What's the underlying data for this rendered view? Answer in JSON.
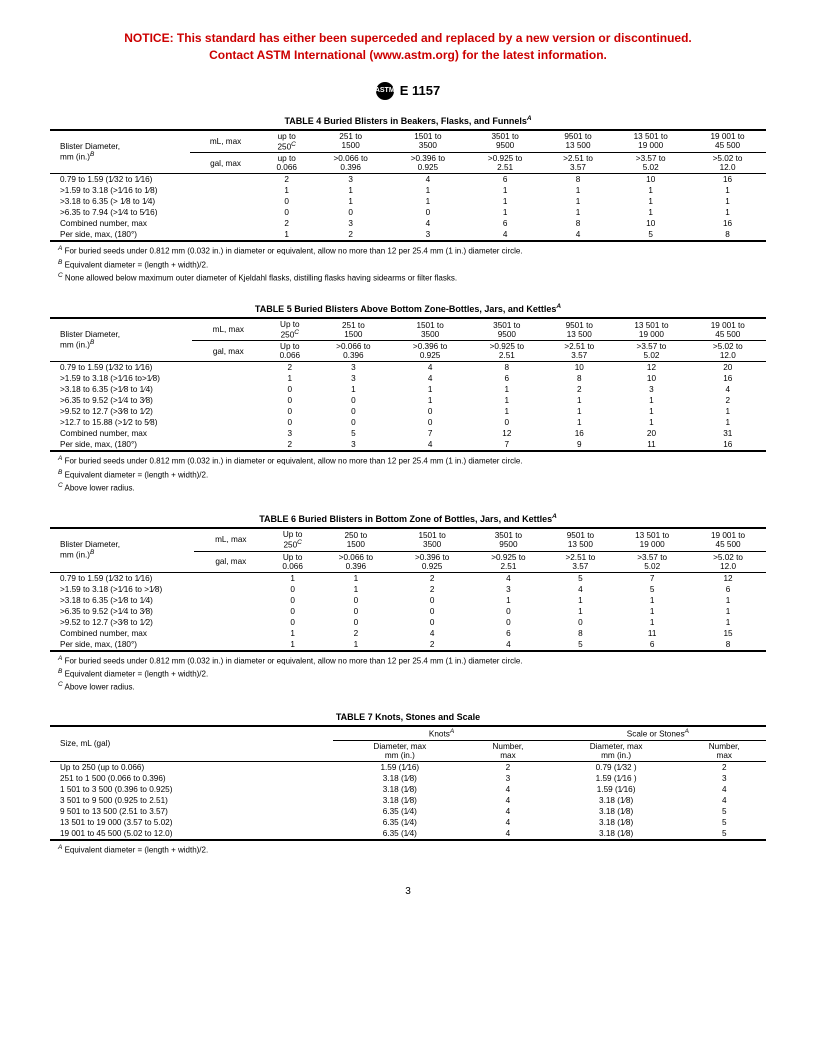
{
  "notice_line1": "NOTICE: This standard has either been superceded and replaced by a new version or discontinued.",
  "notice_line2": "Contact ASTM International (www.astm.org) for the latest information.",
  "standard_id": "E 1157",
  "logo_text": "ASTM",
  "page_number": "3",
  "table4": {
    "title": "TABLE 4  Buried Blisters in Beakers, Flasks, and Funnels",
    "title_sup": "A",
    "left_label": "Blister Diameter,\nmm (in.)",
    "left_sup": "B",
    "unit1": "mL, max",
    "unit2": "gal, max",
    "ml_headers": [
      "up to 250",
      "251 to 1500",
      "1501 to 3500",
      "3501 to 9500",
      "9501 to 13 500",
      "13 501 to 19 000",
      "19 001 to 45 500"
    ],
    "ml_sup": "C",
    "gal_headers": [
      "up to 0.066",
      ">0.066 to 0.396",
      ">0.396 to 0.925",
      ">0.925 to 2.51",
      ">2.51 to 3.57",
      ">3.57 to 5.02",
      ">5.02 to 12.0"
    ],
    "rows": [
      {
        "label": "0.79 to 1.59 (1⁄32 to 1⁄16)",
        "v": [
          "2",
          "3",
          "4",
          "6",
          "8",
          "10",
          "16"
        ]
      },
      {
        "label": ">1.59 to 3.18 (>1⁄16 to 1⁄8)",
        "v": [
          "1",
          "1",
          "1",
          "1",
          "1",
          "1",
          "1"
        ]
      },
      {
        "label": ">3.18 to 6.35 (> 1⁄8 to 1⁄4)",
        "v": [
          "0",
          "1",
          "1",
          "1",
          "1",
          "1",
          "1"
        ]
      },
      {
        "label": ">6.35 to 7.94 (>1⁄4 to 5⁄16)",
        "v": [
          "0",
          "0",
          "0",
          "1",
          "1",
          "1",
          "1"
        ]
      },
      {
        "label": "Combined number, max",
        "v": [
          "2",
          "3",
          "4",
          "6",
          "8",
          "10",
          "16"
        ]
      },
      {
        "label": "Per side, max, (180°)",
        "v": [
          "1",
          "2",
          "3",
          "4",
          "4",
          "5",
          "8"
        ]
      }
    ],
    "footnotes": [
      {
        "s": "A",
        "t": "For buried seeds under 0.812 mm (0.032 in.) in diameter or equivalent, allow no more than 12 per 25.4 mm (1 in.) diameter circle."
      },
      {
        "s": "B",
        "t": "Equivalent diameter = (length + width)/2."
      },
      {
        "s": "C",
        "t": "None allowed below maximum outer diameter of Kjeldahl flasks, distilling flasks having sidearms or filter flasks."
      }
    ]
  },
  "table5": {
    "title": "TABLE 5  Buried Blisters Above Bottom Zone-Bottles, Jars, and Kettles",
    "title_sup": "A",
    "left_label": "Blister Diameter,\nmm (in.)",
    "left_sup": "B",
    "unit1": "mL, max",
    "unit2": "gal, max",
    "ml_headers": [
      "Up to 250",
      "251 to 1500",
      "1501 to 3500",
      "3501 to 9500",
      "9501 to 13 500",
      "13 501 to 19 000",
      "19 001 to 45 500"
    ],
    "ml_sup": "C",
    "gal_headers": [
      "Up to 0.066",
      ">0.066 to 0.396",
      ">0.396 to 0.925",
      ">0.925 to 2.51",
      ">2.51 to 3.57",
      ">3.57 to 5.02",
      ">5.02 to 12.0"
    ],
    "rows": [
      {
        "label": "0.79 to 1.59 (1⁄32 to 1⁄16)",
        "v": [
          "2",
          "3",
          "4",
          "8",
          "10",
          "12",
          "20"
        ]
      },
      {
        "label": ">1.59 to 3.18 (>1⁄16 to>1⁄8)",
        "v": [
          "1",
          "3",
          "4",
          "6",
          "8",
          "10",
          "16"
        ]
      },
      {
        "label": ">3.18 to 6.35 (>1⁄8 to 1⁄4)",
        "v": [
          "0",
          "1",
          "1",
          "1",
          "2",
          "3",
          "4"
        ]
      },
      {
        "label": ">6.35 to 9.52 (>1⁄4 to 3⁄8)",
        "v": [
          "0",
          "0",
          "1",
          "1",
          "1",
          "1",
          "2"
        ]
      },
      {
        "label": ">9.52 to 12.7 (>3⁄8 to 1⁄2)",
        "v": [
          "0",
          "0",
          "0",
          "1",
          "1",
          "1",
          "1"
        ]
      },
      {
        "label": ">12.7 to 15.88 (>1⁄2 to 5⁄8)",
        "v": [
          "0",
          "0",
          "0",
          "0",
          "1",
          "1",
          "1"
        ]
      },
      {
        "label": "Combined number, max",
        "v": [
          "3",
          "5",
          "7",
          "12",
          "16",
          "20",
          "31"
        ]
      },
      {
        "label": "Per side, max, (180°)",
        "v": [
          "2",
          "3",
          "4",
          "7",
          "9",
          "11",
          "16"
        ]
      }
    ],
    "footnotes": [
      {
        "s": "A",
        "t": "For buried seeds under 0.812 mm (0.032 in.) in diameter or equivalent, allow no more than 12 per 25.4 mm (1 in.) diameter circle."
      },
      {
        "s": "B",
        "t": "Equivalent diameter = (length + width)/2."
      },
      {
        "s": "C",
        "t": "Above lower radius."
      }
    ]
  },
  "table6": {
    "title": "TABLE 6  Buried Blisters in Bottom Zone of Bottles, Jars, and Kettles",
    "title_sup": "A",
    "left_label": "Blister Diameter,\nmm (in.)",
    "left_sup": "B",
    "unit1": "mL, max",
    "unit2": "gal, max",
    "ml_headers": [
      "Up to 250",
      "250 to 1500",
      "1501 to 3500",
      "3501 to 9500",
      "9501 to 13 500",
      "13 501 to 19 000",
      "19 001 to 45 500"
    ],
    "ml_sup": "C",
    "gal_headers": [
      "Up to 0.066",
      ">0.066 to 0.396",
      ">0.396 to 0.925",
      ">0.925 to 2.51",
      ">2.51 to 3.57",
      ">3.57 to 5.02",
      ">5.02 to 12.0"
    ],
    "rows": [
      {
        "label": "0.79 to 1.59 (1⁄32 to 1⁄16)",
        "v": [
          "1",
          "1",
          "2",
          "4",
          "5",
          "7",
          "12"
        ]
      },
      {
        "label": ">1.59 to 3.18 (>1⁄16 to >1⁄8)",
        "v": [
          "0",
          "1",
          "2",
          "3",
          "4",
          "5",
          "6"
        ]
      },
      {
        "label": ">3.18 to 6.35 (>1⁄8 to 1⁄4)",
        "v": [
          "0",
          "0",
          "0",
          "1",
          "1",
          "1",
          "1"
        ]
      },
      {
        "label": ">6.35 to 9.52 (>1⁄4 to 3⁄8)",
        "v": [
          "0",
          "0",
          "0",
          "0",
          "1",
          "1",
          "1"
        ]
      },
      {
        "label": ">9.52 to 12.7 (>3⁄8 to 1⁄2)",
        "v": [
          "0",
          "0",
          "0",
          "0",
          "0",
          "1",
          "1"
        ]
      },
      {
        "label": "Combined number, max",
        "v": [
          "1",
          "2",
          "4",
          "6",
          "8",
          "11",
          "15"
        ]
      },
      {
        "label": "Per side, max, (180°)",
        "v": [
          "1",
          "1",
          "2",
          "4",
          "5",
          "6",
          "8"
        ]
      }
    ],
    "footnotes": [
      {
        "s": "A",
        "t": "For buried seeds under 0.812 mm (0.032 in.) in diameter or equivalent, allow no more than 12 per 25.4 mm (1 in.) diameter circle."
      },
      {
        "s": "B",
        "t": "Equivalent diameter = (length + width)/2."
      },
      {
        "s": "C",
        "t": "Above lower radius."
      }
    ]
  },
  "table7": {
    "title": "TABLE 7  Knots, Stones and Scale",
    "size_label": "Size, mL (gal)",
    "g1": "Knots",
    "g1_sup": "A",
    "g2": "Scale or Stones",
    "g2_sup": "A",
    "sub1": "Diameter, max mm (in.)",
    "sub2": "Number, max",
    "rows": [
      {
        "label": "Up to 250 (up to 0.066)",
        "v": [
          "1.59 (1⁄16)",
          "2",
          "0.79 (1⁄32 )",
          "2"
        ]
      },
      {
        "label": "251 to 1 500 (0.066 to 0.396)",
        "v": [
          "3.18 (1⁄8)",
          "3",
          "1.59 (1⁄16 )",
          "3"
        ]
      },
      {
        "label": "1 501 to 3 500 (0.396 to 0.925)",
        "v": [
          "3.18 (1⁄8)",
          "4",
          "1.59 (1⁄16)",
          "4"
        ]
      },
      {
        "label": "3 501 to 9 500 (0.925 to 2.51)",
        "v": [
          "3.18 (1⁄8)",
          "4",
          "3.18 (1⁄8)",
          "4"
        ]
      },
      {
        "label": "9 501 to 13 500 (2.51 to 3.57)",
        "v": [
          "6.35 (1⁄4)",
          "4",
          "3.18 (1⁄8)",
          "5"
        ]
      },
      {
        "label": "13 501 to 19 000 (3.57 to 5.02)",
        "v": [
          "6.35 (1⁄4)",
          "4",
          "3.18 (1⁄8)",
          "5"
        ]
      },
      {
        "label": "19 001 to 45 500 (5.02 to 12.0)",
        "v": [
          "6.35 (1⁄4)",
          "4",
          "3.18 (1⁄8)",
          "5"
        ]
      }
    ],
    "footnotes": [
      {
        "s": "A",
        "t": "Equivalent diameter = (length + width)/2."
      }
    ]
  }
}
